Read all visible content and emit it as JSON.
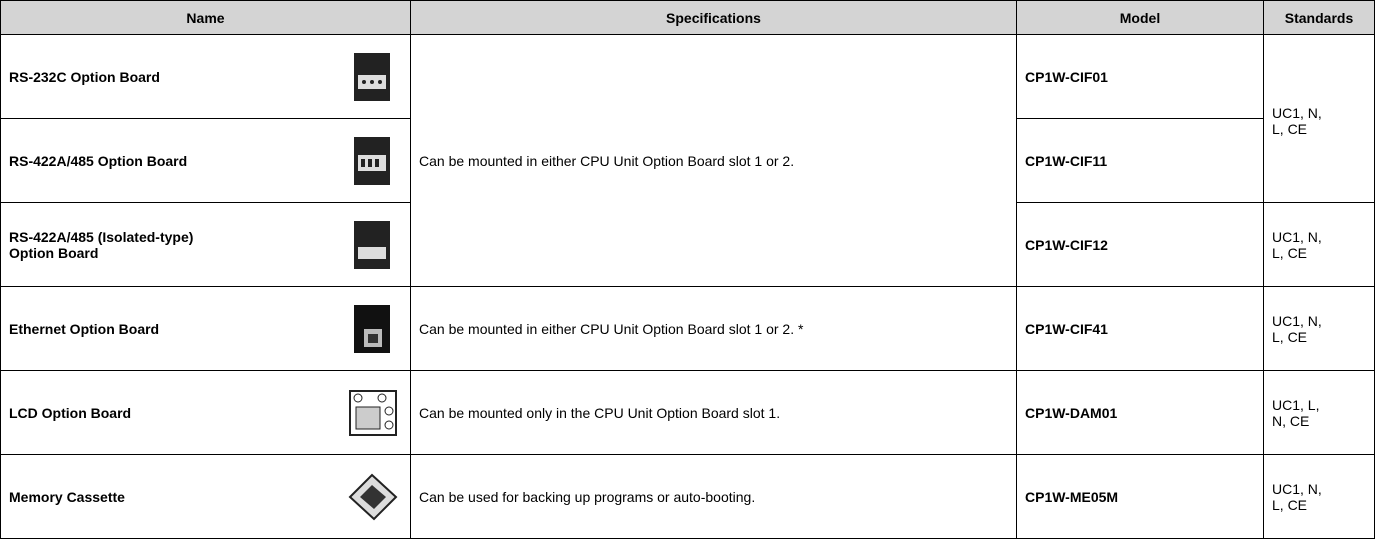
{
  "table": {
    "header": [
      "Name",
      "Specifications",
      "Model",
      "Standards"
    ],
    "rows": [
      {
        "name": "RS-232C Option Board",
        "spec": "Can be mounted in either CPU Unit Option Board slot 1 or 2.",
        "model": "CP1W-CIF01",
        "standards": "UC1, N, L, CE"
      },
      {
        "name": "RS-422A/485 Option Board",
        "model": "CP1W-CIF11"
      },
      {
        "name": "RS-422A/485 (Isolated-type) Option Board",
        "model": "CP1W-CIF12",
        "standards": "UC1, N, L, CE"
      },
      {
        "name": "Ethernet Option Board",
        "spec": "Can be mounted in either CPU Unit Option Board slot 1 or 2. *",
        "model": "CP1W-CIF41",
        "standards": "UC1, N, L, CE"
      },
      {
        "name": "LCD Option Board",
        "spec": "Can be mounted only in the CPU Unit Option Board slot 1.",
        "model": "CP1W-DAM01",
        "standards": "UC1, L, N, CE"
      },
      {
        "name": "Memory Cassette",
        "spec": "Can be used for backing up programs or auto-booting.",
        "model": "CP1W-ME05M",
        "standards": "UC1, N, L, CE"
      }
    ]
  }
}
